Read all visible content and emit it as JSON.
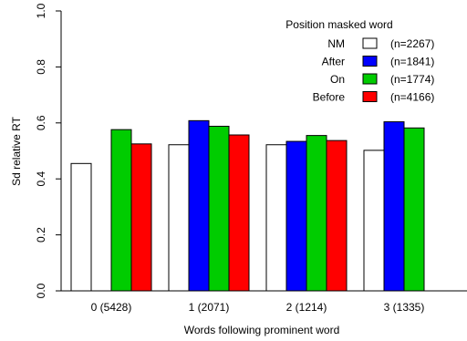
{
  "chart_data": {
    "type": "bar",
    "xlabel": "Words following prominent word",
    "ylabel": "Sd relative RT",
    "ylim": [
      0,
      1
    ],
    "yticks": [
      "0.0",
      "0.2",
      "0.4",
      "0.6",
      "0.8",
      "1.0"
    ],
    "categories": [
      "0 (5428)",
      "1 (2071)",
      "2 (1214)",
      "3 (1335)"
    ],
    "legend": {
      "title": "Position masked word",
      "placement": "top-right",
      "entries": [
        {
          "name": "NM",
          "count": "(n=2267)"
        },
        {
          "name": "After",
          "count": "(n=1841)"
        },
        {
          "name": "On",
          "count": "(n=1774)"
        },
        {
          "name": "Before",
          "count": "(n=4166)"
        }
      ]
    },
    "series": [
      {
        "name": "NM",
        "color": "#ffffff",
        "values": [
          0.455,
          0.522,
          0.522,
          0.502
        ]
      },
      {
        "name": "After",
        "color": "#0000ff",
        "values": [
          0.0,
          0.608,
          0.534,
          0.604
        ]
      },
      {
        "name": "On",
        "color": "#00cc00",
        "values": [
          0.576,
          0.588,
          0.555,
          0.582
        ]
      },
      {
        "name": "Before",
        "color": "#ff0000",
        "values": [
          0.525,
          0.557,
          0.537,
          0.0
        ]
      }
    ],
    "grid": false
  }
}
